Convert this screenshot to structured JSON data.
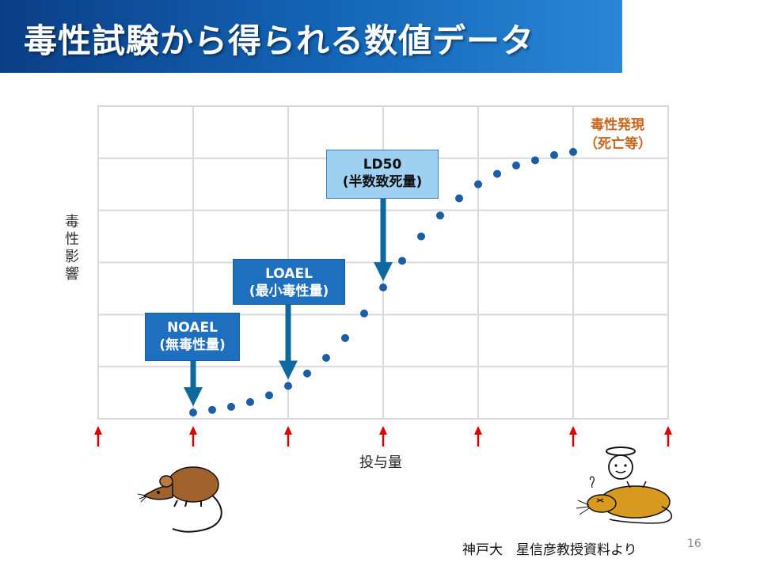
{
  "title": "毒性試験から得られる数値データ",
  "colors": {
    "title_bar": "#1466b8",
    "dots": "#1a5ea8",
    "arrows": "#0e6a9e",
    "dose_arrows": "#e00000",
    "toxic_label": "#c8651c",
    "box_dark": "#1f6fbf",
    "box_light": "#9ed0f2"
  },
  "chart_data": {
    "type": "scatter",
    "ylabel": "毒性影響",
    "xlabel": "投与量",
    "x_divisions": 6,
    "y_divisions": 6,
    "grid": true,
    "xlim": [
      0,
      6
    ],
    "ylim": [
      0,
      6
    ],
    "points": [
      [
        1.0,
        0.12
      ],
      [
        1.2,
        0.17
      ],
      [
        1.4,
        0.23
      ],
      [
        1.6,
        0.32
      ],
      [
        1.8,
        0.45
      ],
      [
        2.0,
        0.63
      ],
      [
        2.2,
        0.87
      ],
      [
        2.4,
        1.17
      ],
      [
        2.6,
        1.55
      ],
      [
        2.8,
        2.02
      ],
      [
        3.0,
        2.52
      ],
      [
        3.2,
        3.03
      ],
      [
        3.4,
        3.5
      ],
      [
        3.6,
        3.9
      ],
      [
        3.8,
        4.23
      ],
      [
        4.0,
        4.5
      ],
      [
        4.2,
        4.7
      ],
      [
        4.4,
        4.86
      ],
      [
        4.6,
        4.96
      ],
      [
        4.8,
        5.06
      ],
      [
        5.0,
        5.12
      ]
    ],
    "dose_markers": [
      0,
      1,
      2,
      3,
      4,
      5,
      6
    ],
    "annotations": [
      {
        "id": "noael",
        "line1": "NOAEL",
        "line2": "(無毒性量)",
        "x": 1.0,
        "y": 0.12
      },
      {
        "id": "loael",
        "line1": "LOAEL",
        "line2": "(最小毒性量)",
        "x": 2.0,
        "y": 0.63
      },
      {
        "id": "ld50",
        "line1": "LD50",
        "line2": "(半数致死量)",
        "x": 3.0,
        "y": 2.52
      }
    ],
    "end_label": {
      "line1": "毒性発現",
      "line2": "（死亡等）"
    }
  },
  "credit": "神戸大　星信彦教授資料より",
  "page_number": "16",
  "icons": {
    "left": "live-rat-icon",
    "right": "dead-rat-angel-icon"
  }
}
